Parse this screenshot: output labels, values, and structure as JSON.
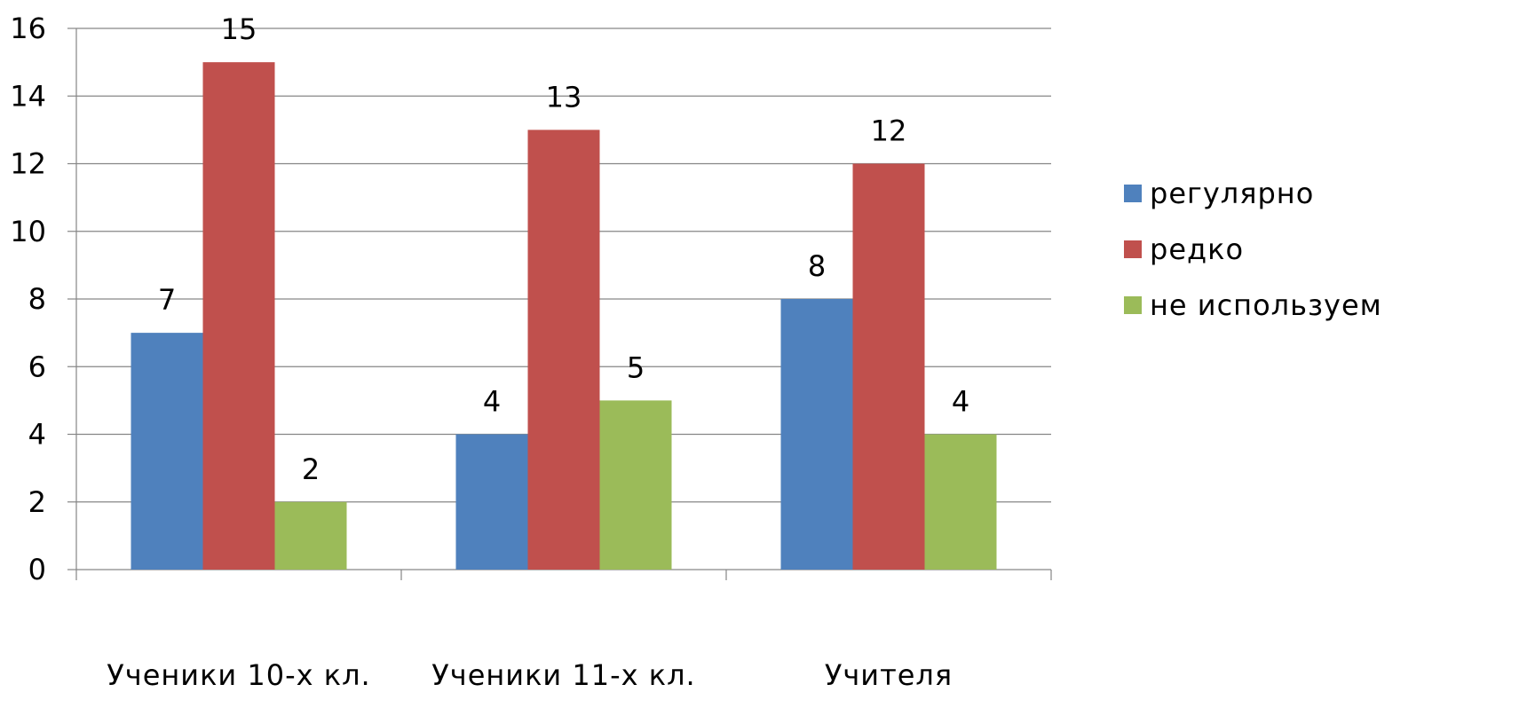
{
  "chart_data": {
    "type": "bar",
    "categories": [
      "Ученики 10-х кл.",
      "Ученики 11-х кл.",
      "Учителя"
    ],
    "series": [
      {
        "name": "регулярно",
        "values": [
          7,
          4,
          8
        ],
        "color": "#4F81BD"
      },
      {
        "name": "редко",
        "values": [
          15,
          13,
          12
        ],
        "color": "#C0504D"
      },
      {
        "name": "не используем",
        "values": [
          2,
          5,
          4
        ],
        "color": "#9BBB59"
      }
    ],
    "ylim": [
      0,
      16
    ],
    "yticks": [
      0,
      2,
      4,
      6,
      8,
      10,
      12,
      14,
      16
    ],
    "grid": true,
    "legend": "right",
    "data_labels": true,
    "title": "",
    "xlabel": "",
    "ylabel": ""
  }
}
